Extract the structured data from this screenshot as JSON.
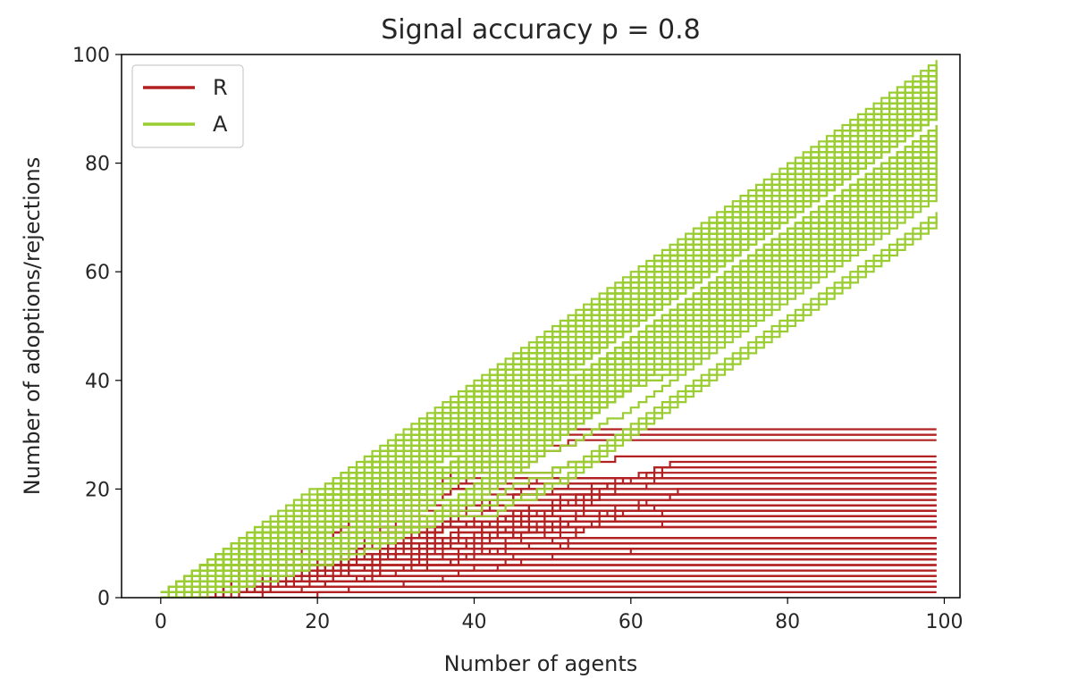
{
  "chart_data": {
    "type": "line",
    "title": "Signal accuracy p =  0.8",
    "xlabel": "Number of agents",
    "ylabel": "Number of adoptions/rejections",
    "xlim": [
      -5,
      102
    ],
    "ylim": [
      0,
      100
    ],
    "xticks": [
      0,
      20,
      40,
      60,
      80,
      100
    ],
    "yticks": [
      0,
      20,
      40,
      60,
      80,
      100
    ],
    "grid": false,
    "legend_position": "top-left",
    "num_runs_per_series": 100,
    "series": [
      {
        "name": "R",
        "color": "#b22222",
        "description": "cumulative rejections per run",
        "final_value_range": [
          6,
          35
        ]
      },
      {
        "name": "A",
        "color": "#9acd32",
        "description": "cumulative adoptions per run",
        "final_value_range": [
          65,
          94
        ]
      }
    ]
  }
}
